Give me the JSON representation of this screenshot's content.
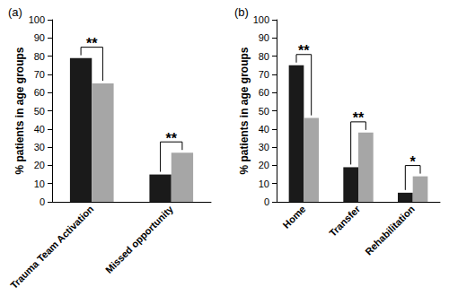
{
  "chart_data": [
    {
      "type": "bar",
      "title": "(a)",
      "ylabel": "% patients in age groups",
      "categories": [
        "Trauma Team Activation",
        "Missed opportunity"
      ],
      "series": [
        {
          "color": "#1a1a1a",
          "values": [
            79,
            15
          ]
        },
        {
          "color": "#a6a6a6",
          "values": [
            65,
            27
          ]
        }
      ],
      "ylim": [
        0,
        100
      ],
      "yticks": [
        0,
        10,
        20,
        30,
        40,
        50,
        60,
        70,
        80,
        90,
        100
      ],
      "grid": false,
      "annotations": [
        {
          "category": "Trauma Team Activation",
          "text": "**"
        },
        {
          "category": "Missed opportunity",
          "text": "**"
        }
      ]
    },
    {
      "type": "bar",
      "title": "(b)",
      "ylabel": "% patients in age groups",
      "categories": [
        "Home",
        "Transfer",
        "Rehabilitation"
      ],
      "series": [
        {
          "color": "#1a1a1a",
          "values": [
            75,
            19,
            5
          ]
        },
        {
          "color": "#a6a6a6",
          "values": [
            46,
            38,
            14
          ]
        }
      ],
      "ylim": [
        0,
        100
      ],
      "yticks": [
        0,
        10,
        20,
        30,
        40,
        50,
        60,
        70,
        80,
        90,
        100
      ],
      "grid": false,
      "annotations": [
        {
          "category": "Home",
          "text": "**"
        },
        {
          "category": "Transfer",
          "text": "**"
        },
        {
          "category": "Rehabilitation",
          "text": "*"
        }
      ]
    }
  ]
}
